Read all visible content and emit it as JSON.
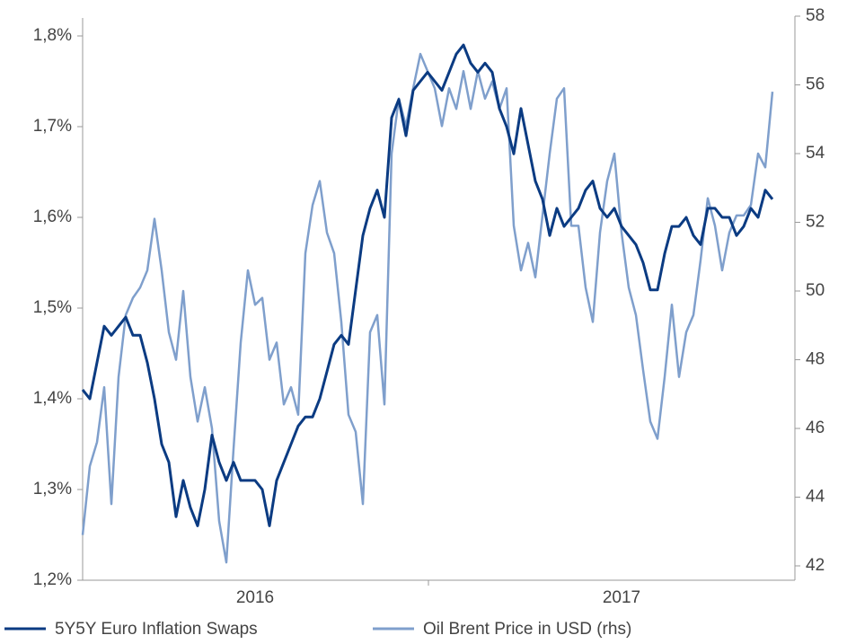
{
  "chart_data": {
    "type": "line",
    "categories": [
      null,
      null,
      null,
      null,
      null,
      null,
      null,
      null,
      null,
      null,
      null,
      null,
      null,
      null,
      null,
      null,
      null,
      null,
      null,
      null,
      null,
      null,
      null,
      null,
      "2016",
      null,
      null,
      null,
      null,
      null,
      null,
      null,
      null,
      null,
      null,
      null,
      null,
      null,
      null,
      null,
      null,
      null,
      null,
      null,
      null,
      null,
      null,
      null,
      null,
      null,
      null,
      null,
      null,
      null,
      null,
      null,
      null,
      null,
      null,
      null,
      null,
      null,
      null,
      null,
      null,
      null,
      null,
      null,
      null,
      null,
      null,
      null,
      null,
      null,
      null,
      "2017",
      null,
      null,
      null,
      null,
      null,
      null,
      null,
      null,
      null,
      null,
      null,
      null,
      null,
      null,
      null,
      null,
      null,
      null,
      null,
      null,
      null
    ],
    "series": [
      {
        "name": "5Y5Y Euro Inflation Swaps",
        "color": "#0b3b82",
        "values": [
          1.41,
          1.4,
          1.44,
          1.48,
          1.47,
          1.48,
          1.49,
          1.47,
          1.47,
          1.44,
          1.4,
          1.35,
          1.33,
          1.27,
          1.31,
          1.28,
          1.26,
          1.3,
          1.36,
          1.33,
          1.31,
          1.33,
          1.31,
          1.31,
          1.31,
          1.3,
          1.26,
          1.31,
          1.33,
          1.35,
          1.37,
          1.38,
          1.38,
          1.4,
          1.43,
          1.46,
          1.47,
          1.46,
          1.52,
          1.58,
          1.61,
          1.63,
          1.6,
          1.71,
          1.73,
          1.69,
          1.74,
          1.75,
          1.76,
          1.75,
          1.74,
          1.76,
          1.78,
          1.79,
          1.77,
          1.76,
          1.77,
          1.76,
          1.72,
          1.7,
          1.67,
          1.72,
          1.68,
          1.64,
          1.62,
          1.58,
          1.61,
          1.59,
          1.6,
          1.61,
          1.63,
          1.64,
          1.61,
          1.6,
          1.61,
          1.59,
          1.58,
          1.57,
          1.55,
          1.52,
          1.52,
          1.56,
          1.59,
          1.59,
          1.6,
          1.58,
          1.57,
          1.61,
          1.61,
          1.6,
          1.6,
          1.58,
          1.59,
          1.61,
          1.6,
          1.63,
          1.62
        ]
      },
      {
        "name": "Oil Brent Price in USD (rhs)",
        "color": "#7f9fcc",
        "axis": "y2",
        "values": [
          42.9,
          44.9,
          45.6,
          47.2,
          43.8,
          47.5,
          49.3,
          49.8,
          50.1,
          50.6,
          52.1,
          50.6,
          48.8,
          48.0,
          50.0,
          47.5,
          46.2,
          47.2,
          46.0,
          43.3,
          42.1,
          45.4,
          48.5,
          50.6,
          49.6,
          49.8,
          48.0,
          48.5,
          46.7,
          47.2,
          46.4,
          51.1,
          52.5,
          53.2,
          51.7,
          51.1,
          49.1,
          46.4,
          45.9,
          43.8,
          48.8,
          49.3,
          46.7,
          54.0,
          55.6,
          54.8,
          55.9,
          56.9,
          56.4,
          55.9,
          54.8,
          55.9,
          55.3,
          56.4,
          55.3,
          56.4,
          55.6,
          56.1,
          55.3,
          55.9,
          51.9,
          50.6,
          51.4,
          50.4,
          52.2,
          54.0,
          55.6,
          55.9,
          51.9,
          51.9,
          50.1,
          49.1,
          51.7,
          53.2,
          54.0,
          51.7,
          50.1,
          49.3,
          47.7,
          46.2,
          45.7,
          47.5,
          49.6,
          47.5,
          48.8,
          49.3,
          50.9,
          52.7,
          51.9,
          50.6,
          51.7,
          52.2,
          52.2,
          52.5,
          54.0,
          53.6,
          55.8
        ]
      }
    ],
    "ylim": [
      1.2,
      1.8
    ],
    "yticks": [
      {
        "value": 1.2,
        "label": "1,2%"
      },
      {
        "value": 1.3,
        "label": "1,3%"
      },
      {
        "value": 1.4,
        "label": "1,4%"
      },
      {
        "value": 1.5,
        "label": "1,5%"
      },
      {
        "value": 1.6,
        "label": "1,6%"
      },
      {
        "value": 1.7,
        "label": "1,7%"
      },
      {
        "value": 1.8,
        "label": "1,8%"
      }
    ],
    "y2lim": [
      42,
      58
    ],
    "y2ticks": [
      42,
      44,
      46,
      48,
      50,
      52,
      54,
      56,
      58
    ],
    "legend": "bottom"
  }
}
